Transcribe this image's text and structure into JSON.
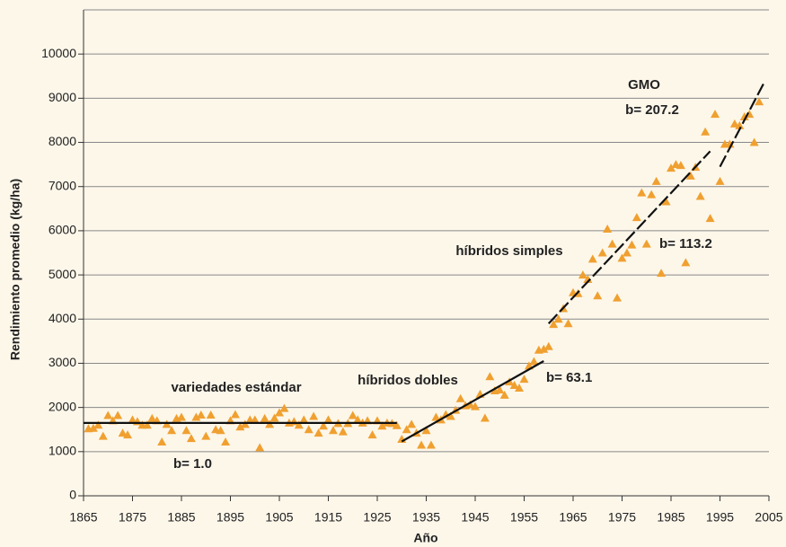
{
  "chart_data": {
    "type": "scatter",
    "x_label": "Año",
    "y_label": "Rendimiento promedio (kg/ha)",
    "xlim": [
      1865,
      2005
    ],
    "xticks": [
      1865,
      1875,
      1885,
      1895,
      1905,
      1915,
      1925,
      1935,
      1945,
      1955,
      1965,
      1975,
      1985,
      1995,
      2005
    ],
    "ylim": [
      0,
      11000
    ],
    "yticks": [
      0,
      1000,
      2000,
      3000,
      4000,
      5000,
      6000,
      7000,
      8000,
      9000,
      10000
    ],
    "grid": true,
    "series": [
      {
        "color": "#f0a030",
        "x": [
          1866,
          1867,
          1868,
          1869,
          1870,
          1871,
          1872,
          1873,
          1874,
          1875,
          1876,
          1877,
          1878,
          1879,
          1880,
          1881,
          1882,
          1883,
          1884,
          1885,
          1886,
          1887,
          1888,
          1889,
          1890,
          1891,
          1892,
          1893,
          1894,
          1895,
          1896,
          1897,
          1898,
          1899,
          1900,
          1901,
          1902,
          1903,
          1904,
          1905,
          1906,
          1907,
          1908,
          1909,
          1910,
          1911,
          1912,
          1913,
          1914,
          1915,
          1916,
          1917,
          1918,
          1919,
          1920,
          1921,
          1922,
          1923,
          1924,
          1925,
          1926,
          1927,
          1928,
          1929,
          1930,
          1931,
          1932,
          1933,
          1934,
          1935,
          1936,
          1937,
          1938,
          1939,
          1940,
          1941,
          1942,
          1943,
          1944,
          1945,
          1946,
          1947,
          1948,
          1949,
          1950,
          1951,
          1952,
          1953,
          1954,
          1955,
          1956,
          1957,
          1958,
          1959,
          1960,
          1961,
          1962,
          1963,
          1964,
          1965,
          1966,
          1967,
          1968,
          1969,
          1970,
          1971,
          1972,
          1973,
          1974,
          1975,
          1976,
          1977,
          1978,
          1979,
          1980,
          1981,
          1982,
          1983,
          1984,
          1985,
          1986,
          1987,
          1988,
          1989,
          1990,
          1991,
          1992,
          1993,
          1994,
          1995,
          1996,
          1997,
          1998,
          1999,
          2000,
          2001,
          2002,
          2003
        ],
        "values": [
          1520,
          1530,
          1600,
          1350,
          1820,
          1700,
          1820,
          1420,
          1380,
          1720,
          1680,
          1600,
          1600,
          1750,
          1700,
          1220,
          1620,
          1480,
          1750,
          1780,
          1480,
          1300,
          1780,
          1830,
          1350,
          1830,
          1500,
          1480,
          1220,
          1700,
          1840,
          1560,
          1620,
          1720,
          1720,
          1090,
          1750,
          1620,
          1760,
          1880,
          1980,
          1650,
          1680,
          1600,
          1720,
          1500,
          1800,
          1420,
          1580,
          1720,
          1480,
          1640,
          1450,
          1640,
          1820,
          1720,
          1650,
          1700,
          1380,
          1700,
          1580,
          1650,
          1640,
          1590,
          1280,
          1500,
          1620,
          1420,
          1150,
          1480,
          1150,
          1780,
          1720,
          1840,
          1800,
          1940,
          2200,
          2040,
          2060,
          2020,
          2300,
          1760,
          2700,
          2380,
          2400,
          2280,
          2580,
          2500,
          2440,
          2640,
          2940,
          3040,
          3300,
          3320,
          3380,
          3880,
          4000,
          4240,
          3900,
          4600,
          4580,
          5000,
          4900,
          5360,
          4530,
          5500,
          6040,
          5700,
          4480,
          5380,
          5500,
          5680,
          6300,
          6860,
          5700,
          6820,
          7120,
          5040,
          6660,
          7420,
          7500,
          7480,
          5280,
          7240,
          7440,
          6780,
          8240,
          6280,
          8640,
          7120,
          7960,
          7960,
          8420,
          8380,
          8580,
          8640,
          8000,
          8920
        ]
      }
    ],
    "trend_lines": [
      {
        "x": [
          1865,
          1929
        ],
        "y": [
          1650,
          1650
        ],
        "dashed": false
      },
      {
        "x": [
          1930,
          1959
        ],
        "y": [
          1230,
          3050
        ],
        "dashed": false
      },
      {
        "x": [
          1960,
          1993
        ],
        "y": [
          3900,
          7800
        ],
        "dashed": true
      },
      {
        "x": [
          1995,
          2004
        ],
        "y": [
          7450,
          9350
        ],
        "dashed": true
      }
    ],
    "annotations": [
      "GMO",
      "b= 207.2",
      "híbridos simples",
      "b= 113.2",
      "híbridos dobles",
      "b= 63.1",
      "variedades estándar",
      "b= 1.0"
    ]
  }
}
